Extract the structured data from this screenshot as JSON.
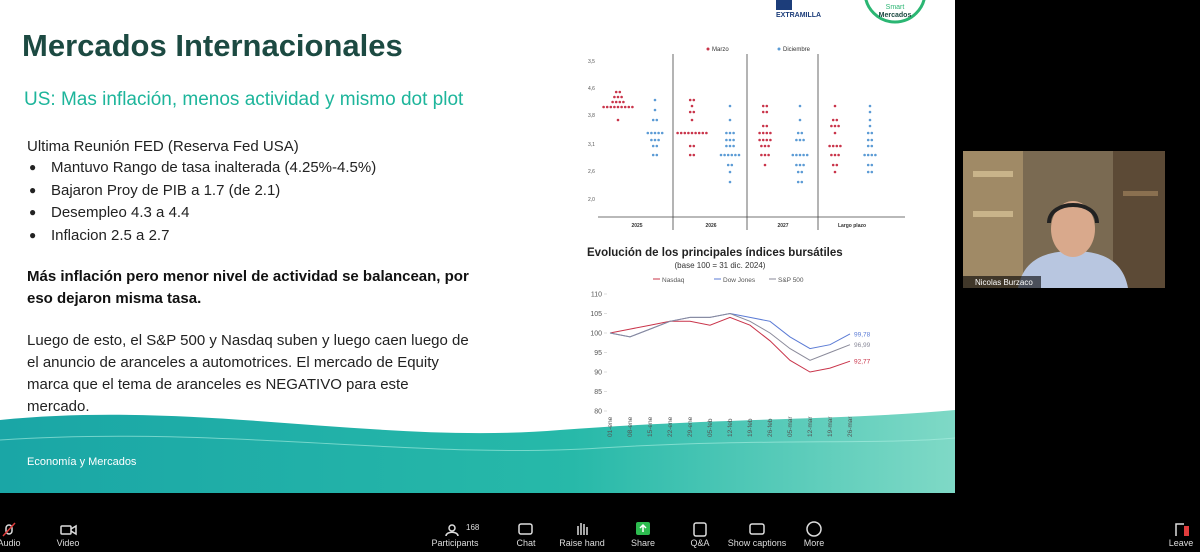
{
  "slide": {
    "title": "Mercados Internacionales",
    "subtitle": "US: Mas inflación, menos actividad y mismo dot plot",
    "intro": "Ultima Reunión FED (Reserva Fed USA)",
    "bullets": [
      "Mantuvo Rango de tasa inalterada (4.25%-4.5%)",
      "Bajaron Proy de PIB a 1.7 (de 2.1)",
      "Desempleo 4.3 a 4.4",
      "Inflacion 2.5 a 2.7"
    ],
    "emphasis": "Más inflación pero menor nivel de actividad se balancean, por eso dejaron misma tasa.",
    "paragraph": "Luego de esto, el S&P 500 y Nasdaq suben y luego caen luego de el anuncio de aranceles a automotrices. El mercado de Equity marca que el tema de aranceles es NEGATIVO para este mercado.",
    "footer": "Economía y Mercados",
    "logo_text": "EXTRAMILLA",
    "badge": [
      "Smart",
      "Mercados"
    ]
  },
  "dot_plot": {
    "legend": [
      "Marzo",
      "Diciembre"
    ],
    "y_labels": [
      "3,5",
      "4,6",
      "3,8",
      "3,1",
      "2,6",
      "2,0"
    ],
    "categories": [
      "2025",
      "2026",
      "2027",
      "Largo plazo"
    ]
  },
  "chart_data": {
    "type": "line",
    "title": "Evolución de los principales índices bursátiles",
    "subtitle": "(base 100 = 31 dic. 2024)",
    "categories": [
      "01-ene",
      "08-ene",
      "15-ene",
      "22-ene",
      "29-ene",
      "05-feb",
      "12-feb",
      "19-feb",
      "26-feb",
      "05-mar",
      "12-mar",
      "19-mar",
      "26-mar"
    ],
    "series": [
      {
        "name": "Nasdaq",
        "color": "#c9344a",
        "values": [
          100,
          101,
          102,
          103,
          103,
          102,
          104,
          102,
          98,
          93,
          90,
          91,
          92.77
        ],
        "value_labels": [
          null,
          null,
          null,
          null,
          null,
          null,
          null,
          null,
          null,
          null,
          null,
          null,
          "92,77"
        ]
      },
      {
        "name": "Dow Jones",
        "color": "#5b7bd5",
        "values": [
          100,
          99,
          101,
          103,
          104,
          104,
          105,
          104,
          103,
          99,
          96,
          97,
          99.78
        ],
        "value_labels": [
          null,
          null,
          null,
          null,
          null,
          null,
          null,
          null,
          null,
          null,
          null,
          null,
          "99,78"
        ]
      },
      {
        "name": "S&P 500",
        "color": "#8a8a9a",
        "values": [
          100,
          99,
          101,
          103,
          104,
          104,
          105,
          103,
          100,
          96,
          93,
          95,
          96.99
        ],
        "value_labels": [
          null,
          null,
          null,
          null,
          null,
          null,
          null,
          null,
          null,
          null,
          null,
          null,
          "96,99"
        ]
      }
    ],
    "ylim": [
      80,
      110
    ],
    "yticks": [
      80,
      85,
      90,
      95,
      100,
      105,
      110
    ]
  },
  "video": {
    "name": "Nicolas Burzaco"
  },
  "toolbar": {
    "participants_count": "168",
    "items": [
      "Audio",
      "Video",
      "Participants",
      "Chat",
      "Raise hand",
      "Share",
      "Q&A",
      "Show captions",
      "More",
      "Leave"
    ]
  }
}
